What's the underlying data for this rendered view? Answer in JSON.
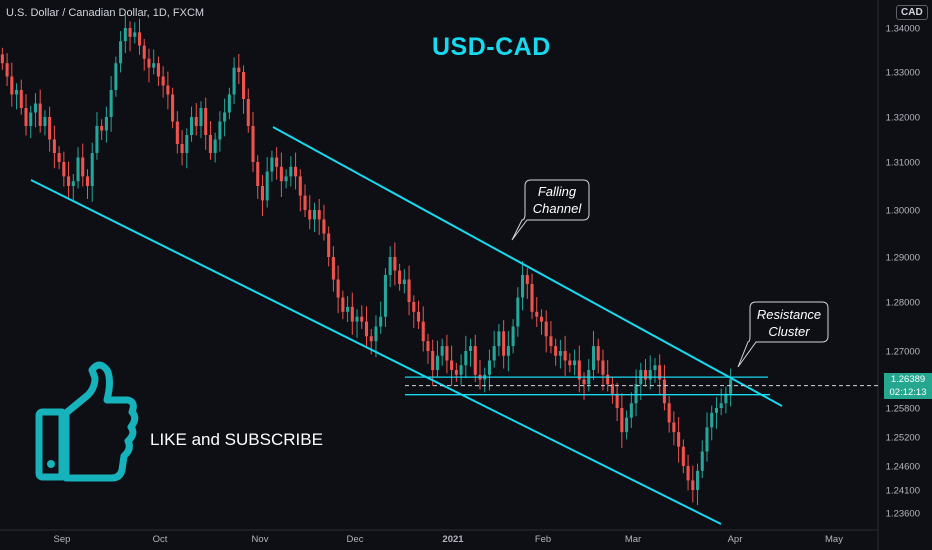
{
  "header": {
    "symbol_label": "U.S. Dollar / Canadian Dollar, 1D, FXCM",
    "currency_badge": "CAD",
    "headline": "USD-CAD"
  },
  "annotations": {
    "falling_channel_l1": "Falling",
    "falling_channel_l2": "Channel",
    "resistance_l1": "Resistance",
    "resistance_l2": "Cluster"
  },
  "call_to_action": "LIKE and SUBSCRIBE",
  "price_label": {
    "price": "1.26389",
    "countdown": "02:12:13"
  },
  "colors": {
    "up": "#26a69a",
    "down": "#ef5350",
    "accent": "#17d9f0",
    "thumb": "#17b3bd"
  },
  "icons": {
    "thumb": "thumbs-up-icon"
  },
  "chart_data": {
    "type": "candlestick",
    "title": "U.S. Dollar / Canadian Dollar, 1D, FXCM",
    "ylim": [
      1.232,
      1.3425
    ],
    "y_ticks": [
      "1.34000",
      "1.33000",
      "1.32000",
      "1.31000",
      "1.30000",
      "1.29000",
      "1.28000",
      "1.27000",
      "1.25800",
      "1.25200",
      "1.24600",
      "1.24100",
      "1.23600"
    ],
    "x_ticks": [
      "Sep",
      "Oct",
      "Nov",
      "Dec",
      "2021",
      "Feb",
      "Mar",
      "Apr",
      "May"
    ],
    "closes_daily_approx": [
      1.332,
      1.329,
      1.325,
      1.326,
      1.322,
      1.318,
      1.321,
      1.323,
      1.318,
      1.32,
      1.315,
      1.312,
      1.31,
      1.307,
      1.305,
      1.306,
      1.311,
      1.307,
      1.305,
      1.312,
      1.318,
      1.317,
      1.32,
      1.326,
      1.332,
      1.337,
      1.34,
      1.338,
      1.339,
      1.336,
      1.333,
      1.331,
      1.332,
      1.329,
      1.327,
      1.325,
      1.319,
      1.314,
      1.312,
      1.316,
      1.32,
      1.318,
      1.322,
      1.316,
      1.312,
      1.315,
      1.319,
      1.321,
      1.325,
      1.331,
      1.33,
      1.324,
      1.318,
      1.31,
      1.305,
      1.302,
      1.308,
      1.311,
      1.309,
      1.306,
      1.307,
      1.309,
      1.307,
      1.303,
      1.3,
      1.298,
      1.3,
      1.298,
      1.295,
      1.29,
      1.285,
      1.281,
      1.278,
      1.279,
      1.276,
      1.277,
      1.276,
      1.273,
      1.272,
      1.275,
      1.277,
      1.286,
      1.29,
      1.287,
      1.284,
      1.285,
      1.28,
      1.278,
      1.276,
      1.272,
      1.27,
      1.266,
      1.269,
      1.271,
      1.268,
      1.266,
      1.265,
      1.267,
      1.27,
      1.271,
      1.265,
      1.264,
      1.265,
      1.268,
      1.271,
      1.274,
      1.269,
      1.271,
      1.275,
      1.281,
      1.286,
      1.284,
      1.278,
      1.277,
      1.276,
      1.273,
      1.271,
      1.269,
      1.27,
      1.268,
      1.267,
      1.268,
      1.264,
      1.263,
      1.266,
      1.271,
      1.268,
      1.265,
      1.263,
      1.261,
      1.258,
      1.253,
      1.256,
      1.259,
      1.263,
      1.266,
      1.264,
      1.266,
      1.267,
      1.264,
      1.259,
      1.255,
      1.253,
      1.25,
      1.246,
      1.243,
      1.241,
      1.245,
      1.249,
      1.254,
      1.257,
      1.258,
      1.259,
      1.261,
      1.264
    ],
    "last_price": 1.26389,
    "trend_lines": [
      {
        "name": "channel-upper",
        "from": [
          1.3205,
          "late Oct"
        ],
        "to": [
          1.2597,
          "early Apr"
        ]
      },
      {
        "name": "channel-lower",
        "from": [
          1.3075,
          "mid Aug"
        ],
        "to": [
          1.234,
          "late Mar"
        ]
      }
    ],
    "resistance_cluster": [
      1.2645,
      1.2627,
      1.2608
    ]
  }
}
